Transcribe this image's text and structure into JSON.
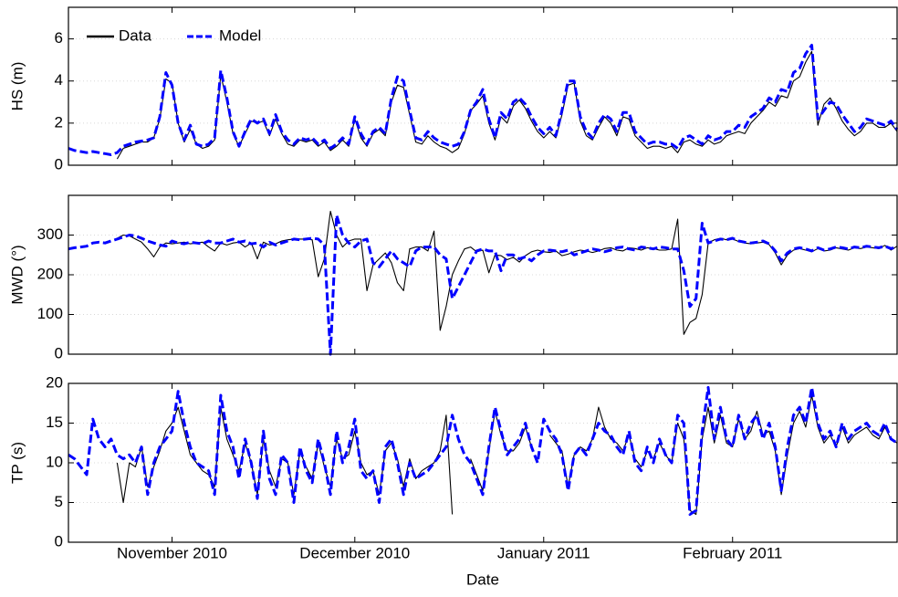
{
  "chart_data": [
    {
      "type": "line",
      "ylabel": "HS (m)",
      "ylim": [
        0,
        7.5
      ],
      "yticks": [
        0,
        2,
        4,
        6
      ],
      "grid": true,
      "legend": "upper left",
      "series": [
        {
          "name": "Data",
          "color": "#000000",
          "values": [
            null,
            null,
            null,
            null,
            null,
            null,
            null,
            null,
            0.3,
            0.8,
            0.9,
            1.0,
            1.1,
            1.1,
            1.3,
            2.2,
            4.1,
            3.9,
            2.0,
            1.1,
            1.7,
            1.0,
            0.8,
            0.9,
            1.2,
            4.3,
            3.0,
            1.5,
            0.9,
            1.5,
            2.1,
            2.0,
            2.1,
            1.4,
            2.2,
            1.5,
            1.0,
            0.9,
            1.2,
            1.1,
            1.2,
            0.9,
            1.1,
            0.7,
            0.9,
            1.2,
            0.9,
            2.2,
            1.3,
            0.9,
            1.5,
            1.7,
            1.4,
            3.0,
            3.8,
            3.7,
            2.4,
            1.1,
            1.0,
            1.4,
            1.1,
            0.9,
            0.8,
            0.6,
            0.8,
            1.5,
            2.6,
            2.9,
            3.3,
            2.0,
            1.2,
            2.3,
            2.0,
            2.8,
            3.1,
            2.7,
            2.1,
            1.6,
            1.3,
            1.6,
            1.3,
            2.4,
            3.8,
            3.9,
            2.1,
            1.4,
            1.2,
            1.8,
            2.3,
            2.0,
            1.4,
            2.3,
            2.2,
            1.4,
            1.1,
            0.8,
            0.9,
            0.9,
            0.8,
            0.9,
            0.6,
            1.1,
            1.2,
            1.0,
            0.9,
            1.2,
            1.0,
            1.1,
            1.4,
            1.5,
            1.6,
            1.5,
            2.0,
            2.3,
            2.6,
            3.0,
            2.8,
            3.3,
            3.2,
            4.0,
            4.2,
            4.9,
            5.4,
            1.9,
            2.9,
            3.2,
            2.7,
            2.1,
            1.7,
            1.4,
            1.6,
            2.0,
            2.0,
            1.8,
            1.8,
            2.0,
            1.6
          ]
        },
        {
          "name": "Model",
          "color": "#0000ff",
          "values": [
            0.8,
            0.7,
            0.65,
            0.6,
            0.65,
            0.6,
            0.55,
            0.5,
            0.6,
            0.9,
            1.0,
            1.1,
            1.15,
            1.2,
            1.3,
            2.3,
            4.4,
            3.8,
            2.0,
            1.2,
            1.9,
            1.0,
            0.9,
            1.0,
            1.3,
            4.5,
            3.2,
            1.6,
            0.9,
            1.6,
            2.2,
            2.0,
            2.2,
            1.5,
            2.4,
            1.6,
            1.2,
            1.0,
            1.3,
            1.2,
            1.3,
            1.0,
            1.2,
            0.8,
            1.0,
            1.3,
            1.0,
            2.3,
            1.5,
            1.0,
            1.6,
            1.8,
            1.5,
            3.2,
            4.2,
            4.0,
            2.6,
            1.3,
            1.2,
            1.6,
            1.3,
            1.1,
            1.0,
            0.9,
            1.0,
            1.6,
            2.6,
            3.0,
            3.6,
            2.2,
            1.3,
            2.5,
            2.2,
            3.0,
            3.2,
            2.9,
            2.3,
            1.8,
            1.5,
            1.8,
            1.4,
            2.6,
            4.0,
            4.0,
            2.3,
            1.6,
            1.3,
            2.0,
            2.4,
            2.2,
            1.6,
            2.5,
            2.5,
            1.6,
            1.3,
            1.0,
            1.1,
            1.1,
            1.0,
            1.0,
            0.8,
            1.3,
            1.4,
            1.2,
            1.0,
            1.4,
            1.2,
            1.3,
            1.6,
            1.6,
            1.9,
            1.8,
            2.3,
            2.5,
            2.7,
            3.2,
            3.0,
            3.6,
            3.5,
            4.4,
            4.6,
            5.3,
            5.7,
            2.2,
            2.6,
            3.0,
            2.9,
            2.4,
            2.0,
            1.6,
            1.8,
            2.2,
            2.1,
            2.0,
            1.9,
            2.1,
            1.7
          ]
        }
      ]
    },
    {
      "type": "line",
      "ylabel": "MWD (°)",
      "ylim": [
        0,
        400
      ],
      "yticks": [
        0,
        100,
        200,
        300
      ],
      "grid": true,
      "series": [
        {
          "color": "#000000",
          "values": [
            null,
            null,
            null,
            null,
            null,
            null,
            null,
            null,
            292,
            300,
            298,
            290,
            282,
            265,
            245,
            270,
            280,
            278,
            280,
            282,
            278,
            280,
            282,
            270,
            260,
            280,
            275,
            280,
            282,
            270,
            280,
            240,
            282,
            275,
            278,
            285,
            288,
            290,
            290,
            290,
            288,
            195,
            240,
            360,
            300,
            270,
            285,
            290,
            290,
            160,
            225,
            240,
            255,
            230,
            180,
            160,
            265,
            270,
            270,
            260,
            310,
            60,
            120,
            200,
            235,
            265,
            270,
            258,
            262,
            205,
            250,
            248,
            238,
            244,
            232,
            248,
            258,
            262,
            258,
            256,
            260,
            248,
            252,
            258,
            262,
            260,
            256,
            260,
            266,
            268,
            262,
            260,
            268,
            266,
            262,
            268,
            266,
            262,
            262,
            265,
            340,
            50,
            80,
            90,
            150,
            280,
            288,
            292,
            288,
            290,
            284,
            280,
            278,
            280,
            282,
            276,
            255,
            225,
            250,
            262,
            266,
            262,
            258,
            266,
            260,
            262,
            268,
            265,
            262,
            268,
            266,
            270,
            268,
            266,
            274,
            262,
            272
          ]
        },
        {
          "color": "#0000ff",
          "values": [
            265,
            268,
            270,
            272,
            280,
            282,
            280,
            285,
            290,
            295,
            300,
            298,
            292,
            285,
            280,
            275,
            272,
            285,
            280,
            278,
            282,
            280,
            278,
            285,
            280,
            280,
            285,
            290,
            282,
            285,
            278,
            280,
            270,
            282,
            275,
            280,
            285,
            290,
            288,
            290,
            292,
            290,
            275,
            0,
            350,
            300,
            280,
            270,
            285,
            290,
            230,
            220,
            240,
            260,
            240,
            230,
            220,
            260,
            270,
            270,
            270,
            250,
            240,
            140,
            170,
            200,
            230,
            260,
            265,
            260,
            260,
            210,
            250,
            250,
            240,
            245,
            235,
            250,
            260,
            262,
            260,
            258,
            262,
            250,
            255,
            260,
            265,
            262,
            258,
            262,
            268,
            270,
            265,
            262,
            270,
            268,
            265,
            270,
            268,
            265,
            265,
            210,
            120,
            140,
            330,
            280,
            285,
            290,
            288,
            292,
            285,
            282,
            280,
            282,
            285,
            278,
            260,
            235,
            255,
            265,
            268,
            265,
            260,
            268,
            262,
            265,
            270,
            268,
            265,
            270,
            268,
            272,
            270,
            268,
            272,
            266,
            270
          ]
        }
      ]
    },
    {
      "type": "line",
      "ylabel": "TP (s)",
      "xlabel": "Date",
      "ylim": [
        0,
        20
      ],
      "yticks": [
        0,
        5,
        10,
        15,
        20
      ],
      "grid": true,
      "categories": [
        null,
        null,
        null,
        null,
        null,
        null,
        null,
        null,
        null,
        null,
        null,
        null,
        null,
        null,
        null,
        null,
        null,
        "November 2010",
        null,
        null,
        null,
        null,
        null,
        null,
        null,
        null,
        null,
        null,
        null,
        null,
        null,
        null,
        null,
        null,
        null,
        null,
        null,
        null,
        null,
        null,
        null,
        null,
        null,
        null,
        null,
        null,
        null,
        "December 2010",
        null,
        null,
        null,
        null,
        null,
        null,
        null,
        null,
        null,
        null,
        null,
        null,
        null,
        null,
        null,
        null,
        null,
        null,
        null,
        null,
        null,
        null,
        null,
        null,
        null,
        null,
        null,
        null,
        null,
        null,
        "January 2011",
        null,
        null,
        null,
        null,
        null,
        null,
        null,
        null,
        null,
        null,
        null,
        null,
        null,
        null,
        null,
        null,
        null,
        null,
        null,
        null,
        null,
        null,
        null,
        null,
        null,
        null,
        null,
        null,
        null,
        null,
        "February 2011",
        null,
        null,
        null,
        null,
        null,
        null,
        null,
        null,
        null,
        null,
        null,
        null,
        null,
        null,
        null,
        null,
        null,
        null,
        null,
        null,
        null,
        null,
        null,
        null,
        null,
        null,
        null
      ],
      "series": [
        {
          "color": "#000000",
          "values": [
            null,
            null,
            null,
            null,
            null,
            null,
            null,
            null,
            10,
            5,
            10,
            9.5,
            12,
            7,
            9.5,
            11.5,
            14,
            15,
            17,
            14,
            11,
            10,
            9,
            8.5,
            7,
            17,
            13,
            11,
            9,
            12.5,
            10,
            6,
            13,
            9,
            7,
            10.5,
            10,
            6,
            11.5,
            9.5,
            8,
            12.5,
            9.5,
            7,
            13,
            10.5,
            11,
            14,
            10,
            8.5,
            9,
            6,
            11.5,
            12.5,
            10.5,
            7,
            10.5,
            8,
            9,
            9.5,
            10,
            11.5,
            16,
            3.5,
            null,
            null,
            10.5,
            8.5,
            6.5,
            11.5,
            16.5,
            13.5,
            11.5,
            11.5,
            12.5,
            14.5,
            12,
            null,
            null,
            13.5,
            12.5,
            11.5,
            7,
            11,
            12,
            11.5,
            13,
            17,
            14.5,
            13,
            12.5,
            11.5,
            13.5,
            10.5,
            9.5,
            11.5,
            10.5,
            12.5,
            11,
            10,
            15,
            13,
            4,
            3.5,
            13,
            17,
            12.5,
            16,
            12.5,
            12,
            15.5,
            13,
            14,
            16.5,
            13.5,
            14,
            11.5,
            6,
            11,
            15,
            16.5,
            14.5,
            18.5,
            14.5,
            12.5,
            13.5,
            12,
            14.5,
            12.5,
            13.5,
            14,
            14.5,
            13.5,
            13,
            14.5,
            13,
            12.5
          ]
        },
        {
          "color": "#0000ff",
          "values": [
            11,
            10.5,
            9.5,
            8.5,
            15.5,
            13,
            12,
            13,
            11,
            10.5,
            11,
            10,
            12,
            6,
            10,
            12,
            13,
            14,
            19,
            15,
            12,
            10,
            9.5,
            9,
            6,
            18.5,
            14,
            12,
            8,
            13,
            10,
            5.5,
            14,
            8,
            6,
            11,
            10,
            5,
            12,
            9,
            7.5,
            13,
            10,
            6,
            14,
            10,
            12,
            15.5,
            9,
            8,
            9,
            5,
            12,
            13,
            10,
            6,
            10,
            8,
            8.5,
            9,
            10,
            11,
            12,
            16,
            13,
            11,
            10,
            8,
            6,
            12,
            17,
            14,
            11,
            12,
            13,
            15,
            12,
            10,
            15.5,
            14,
            13,
            11,
            6.5,
            11,
            12,
            11,
            13,
            15,
            14,
            13.5,
            12,
            11,
            14,
            10,
            9,
            12,
            10,
            13,
            11,
            10,
            16,
            15,
            3.5,
            4,
            14,
            19.5,
            13,
            17,
            13,
            12,
            16,
            13,
            15,
            16,
            13,
            15,
            12,
            6.5,
            12,
            16,
            17,
            15,
            19.5,
            15,
            13,
            14,
            12,
            15,
            13,
            14,
            14.5,
            15,
            14,
            13.5,
            15,
            13,
            12.5
          ]
        }
      ]
    }
  ]
}
